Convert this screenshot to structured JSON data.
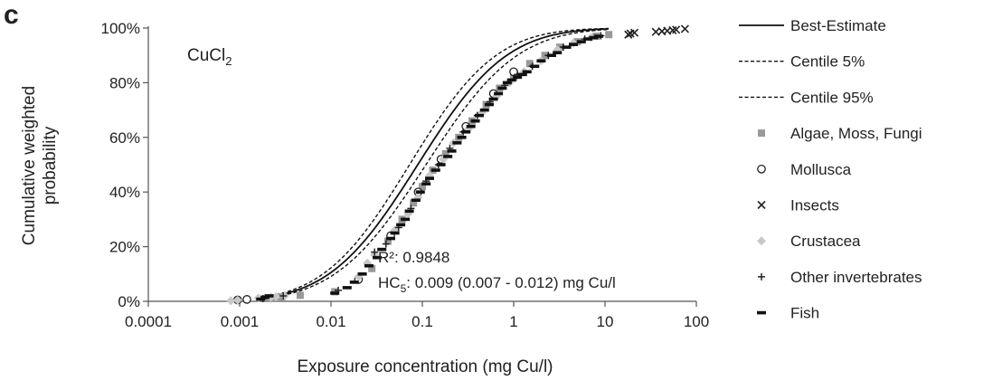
{
  "panel_letter": "c",
  "chart_data": {
    "type": "scatter",
    "xscale": "log",
    "xlim": [
      0.0001,
      100
    ],
    "ylim": [
      0,
      100
    ],
    "xticks": [
      0.0001,
      0.001,
      0.01,
      0.1,
      1,
      10,
      100
    ],
    "xtick_labels": [
      "0.0001",
      "0.001",
      "0.01",
      "0.1",
      "1",
      "10",
      "100"
    ],
    "yticks": [
      0,
      20,
      40,
      60,
      80,
      100
    ],
    "ytick_labels": [
      "0%",
      "20%",
      "40%",
      "60%",
      "80%",
      "100%"
    ],
    "xlabel": "Exposure concentration (mg Cu/l)",
    "ylabel_lines": [
      "Cumulative weighted",
      "probability"
    ],
    "annotations": {
      "compound_main": "CuCl",
      "compound_sub": "2",
      "r2": "R²: 0.9848",
      "hc_prefix": "HC",
      "hc_sub": "5",
      "hc_value": ": 0.009 (0.007 - 0.012) mg Cu/l"
    },
    "curves": [
      {
        "name": "Best-Estimate",
        "style": "solid",
        "mu": -1.05,
        "sigma": 0.76
      },
      {
        "name": "Centile 5%",
        "style": "dashed",
        "mu": -1.14,
        "sigma": 0.74
      },
      {
        "name": "Centile 95%",
        "style": "dashed",
        "mu": -0.96,
        "sigma": 0.78
      }
    ],
    "legend_position": "right",
    "series": [
      {
        "name": "Algae, Moss, Fungi",
        "marker": "square",
        "color": "#999999",
        "points": [
          [
            0.0021,
            1
          ],
          [
            0.0025,
            1.3
          ],
          [
            0.0029,
            1.6
          ],
          [
            0.0046,
            2.2
          ],
          [
            0.011,
            3.5
          ],
          [
            0.028,
            12
          ],
          [
            0.042,
            22
          ],
          [
            0.06,
            30
          ],
          [
            0.08,
            36
          ],
          [
            0.1,
            42
          ],
          [
            0.13,
            48
          ],
          [
            0.18,
            54
          ],
          [
            0.25,
            60
          ],
          [
            0.35,
            66
          ],
          [
            0.5,
            72
          ],
          [
            0.7,
            78
          ],
          [
            1.0,
            82
          ],
          [
            1.5,
            87
          ],
          [
            2.2,
            90
          ],
          [
            3.2,
            93
          ],
          [
            5.0,
            95
          ],
          [
            8.0,
            97
          ],
          [
            11.0,
            97.6
          ]
        ]
      },
      {
        "name": "Mollusca",
        "marker": "circle",
        "color": "#222222",
        "points": [
          [
            0.00095,
            0.5
          ],
          [
            0.0012,
            0.7
          ],
          [
            0.02,
            8
          ],
          [
            0.045,
            24
          ],
          [
            0.09,
            40
          ],
          [
            0.16,
            52
          ],
          [
            0.3,
            64
          ],
          [
            0.6,
            76
          ],
          [
            1.0,
            84
          ]
        ]
      },
      {
        "name": "Insects",
        "marker": "x",
        "color": "#222222",
        "points": [
          [
            18,
            97.6
          ],
          [
            19,
            98
          ],
          [
            21,
            98.3
          ],
          [
            36,
            98.6
          ],
          [
            42,
            98.8
          ],
          [
            48,
            99
          ],
          [
            55,
            99.2
          ],
          [
            60,
            99.4
          ],
          [
            75,
            99.7
          ]
        ]
      },
      {
        "name": "Crustacea",
        "marker": "diamond",
        "color": "#c8c8c8",
        "points": [
          [
            0.0008,
            0.2
          ],
          [
            0.00095,
            0.4
          ],
          [
            0.0016,
            1.2
          ],
          [
            0.0022,
            1.5
          ],
          [
            0.0025,
            1.7
          ],
          [
            0.0031,
            2
          ],
          [
            0.02,
            9
          ],
          [
            0.025,
            14
          ],
          [
            0.03,
            17
          ],
          [
            0.05,
            26
          ],
          [
            0.07,
            32
          ],
          [
            0.09,
            38
          ],
          [
            0.12,
            46
          ],
          [
            0.17,
            52
          ],
          [
            0.22,
            58
          ],
          [
            0.32,
            63
          ],
          [
            0.45,
            69
          ],
          [
            0.65,
            75
          ],
          [
            0.9,
            80
          ],
          [
            1.3,
            84
          ],
          [
            2.0,
            88
          ],
          [
            3.0,
            92
          ],
          [
            4.5,
            94.5
          ],
          [
            7.0,
            96.5
          ]
        ]
      },
      {
        "name": "Other invertebrates",
        "marker": "plus",
        "color": "#222222",
        "points": [
          [
            0.0018,
            1
          ],
          [
            0.003,
            2
          ],
          [
            0.012,
            4
          ],
          [
            0.03,
            18
          ],
          [
            0.04,
            21
          ],
          [
            0.055,
            27
          ],
          [
            0.075,
            34
          ],
          [
            0.11,
            44
          ],
          [
            0.15,
            50
          ],
          [
            0.2,
            56
          ],
          [
            0.28,
            62
          ],
          [
            0.4,
            68
          ],
          [
            0.55,
            73
          ],
          [
            0.8,
            79
          ],
          [
            1.1,
            83
          ],
          [
            1.6,
            86
          ],
          [
            2.4,
            90
          ],
          [
            3.5,
            93
          ],
          [
            6.0,
            96
          ],
          [
            9.0,
            97.2
          ]
        ]
      },
      {
        "name": "Fish",
        "marker": "dash",
        "color": "#111111",
        "points": [
          [
            0.0017,
            0.8
          ],
          [
            0.0019,
            1.5
          ],
          [
            0.0021,
            2.0
          ],
          [
            0.011,
            3
          ],
          [
            0.015,
            5
          ],
          [
            0.018,
            7
          ],
          [
            0.022,
            10
          ],
          [
            0.026,
            13
          ],
          [
            0.032,
            16
          ],
          [
            0.036,
            19
          ],
          [
            0.045,
            23
          ],
          [
            0.05,
            25
          ],
          [
            0.058,
            28
          ],
          [
            0.065,
            30
          ],
          [
            0.072,
            33
          ],
          [
            0.085,
            37
          ],
          [
            0.095,
            40
          ],
          [
            0.11,
            43
          ],
          [
            0.12,
            45
          ],
          [
            0.14,
            48
          ],
          [
            0.16,
            50
          ],
          [
            0.19,
            53
          ],
          [
            0.21,
            55
          ],
          [
            0.24,
            58
          ],
          [
            0.27,
            60
          ],
          [
            0.3,
            62
          ],
          [
            0.34,
            64
          ],
          [
            0.38,
            66
          ],
          [
            0.42,
            68
          ],
          [
            0.48,
            70
          ],
          [
            0.54,
            72
          ],
          [
            0.6,
            74
          ],
          [
            0.68,
            76
          ],
          [
            0.75,
            78
          ],
          [
            0.85,
            80
          ],
          [
            0.95,
            81
          ],
          [
            1.1,
            82
          ],
          [
            1.25,
            83
          ],
          [
            1.4,
            84
          ],
          [
            1.7,
            86
          ],
          [
            2.0,
            88
          ],
          [
            2.6,
            90
          ],
          [
            3.0,
            91
          ],
          [
            3.8,
            93
          ],
          [
            4.5,
            94
          ],
          [
            5.5,
            95
          ],
          [
            6.5,
            96
          ],
          [
            7.5,
            96.5
          ],
          [
            8.5,
            97
          ]
        ]
      }
    ]
  }
}
